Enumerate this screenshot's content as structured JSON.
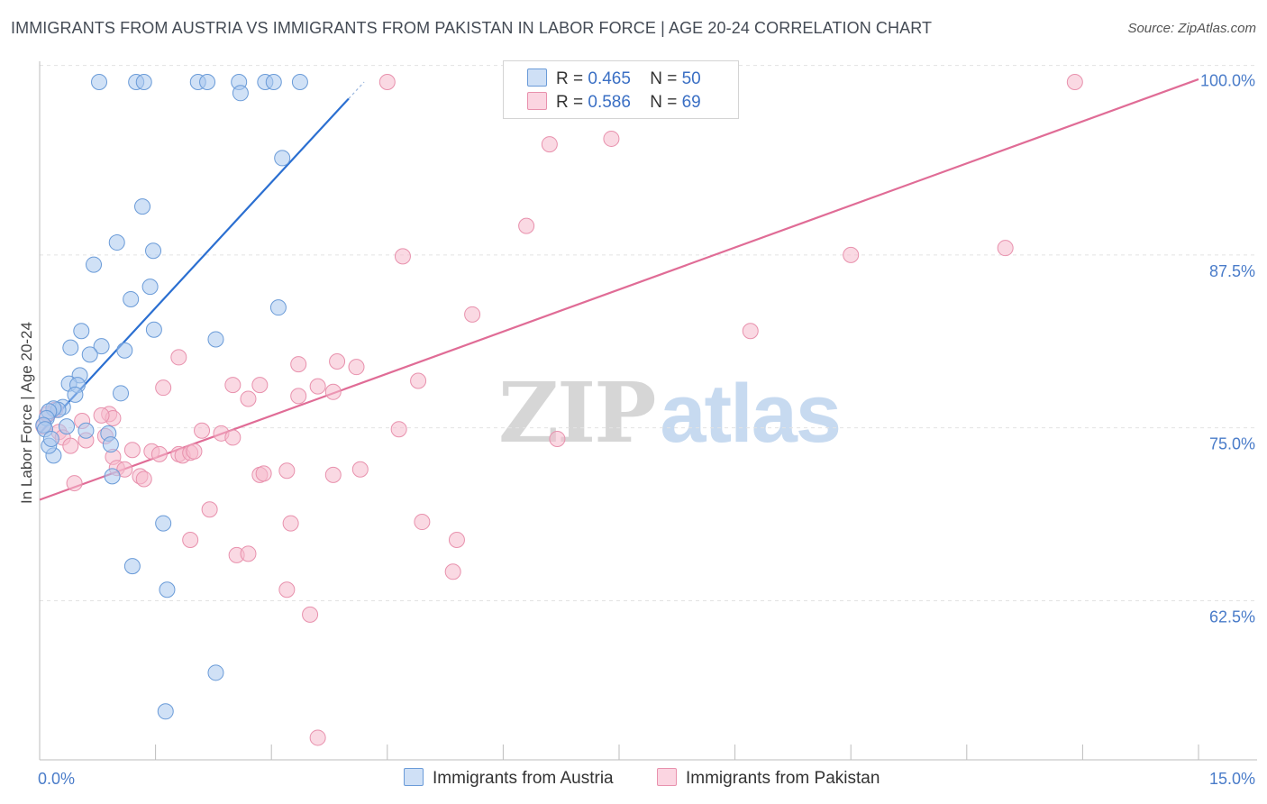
{
  "title": "IMMIGRANTS FROM AUSTRIA VS IMMIGRANTS FROM PAKISTAN IN LABOR FORCE | AGE 20-24 CORRELATION CHART",
  "source": "Source: ZipAtlas.com",
  "watermark": {
    "zip": "ZIP",
    "atlas": "atlas"
  },
  "legend": {
    "rows": [
      {
        "r_label": "R =",
        "r_value": "0.465",
        "n_label": "N =",
        "n_value": "50",
        "color": "#a9c8ee"
      },
      {
        "r_label": "R =",
        "r_value": "0.586",
        "n_label": "N =",
        "n_value": "69",
        "color": "#f6b9cc"
      }
    ]
  },
  "bottom_legend": [
    {
      "label": "Immigrants from Austria",
      "color": "#a9c8ee"
    },
    {
      "label": "Immigrants from Pakistan",
      "color": "#f6b9cc"
    }
  ],
  "colors": {
    "austria_fill": "#a9c8ee",
    "austria_stroke": "#6a9bd8",
    "austria_line": "#2b6fd1",
    "pakistan_fill": "#f6b9cc",
    "pakistan_stroke": "#e891ad",
    "pakistan_line": "#e06c96",
    "grid": "#e3e3e3",
    "axis_label": "#4a7cc9"
  },
  "chart_data": {
    "type": "scatter",
    "title": "IMMIGRANTS FROM AUSTRIA VS IMMIGRANTS FROM PAKISTAN IN LABOR FORCE | AGE 20-24 CORRELATION CHART",
    "xlabel": "",
    "ylabel": "In Labor Force | Age 20-24",
    "xlim": [
      0,
      15
    ],
    "ylim": [
      51,
      101.5
    ],
    "x_tick_labels": [
      "0.0%",
      "15.0%"
    ],
    "y_ticks": [
      62.5,
      75.0,
      87.5,
      100.0
    ],
    "y_tick_labels": [
      "62.5%",
      "75.0%",
      "87.5%",
      "100.0%"
    ],
    "grid": true,
    "legend_position": "top-center",
    "series": [
      {
        "name": "Immigrants from Austria",
        "color": "#a9c8ee",
        "trend": {
          "x": [
            0.0,
            4.0
          ],
          "y": [
            74.6,
            98.8
          ],
          "dashed_to": [
            4.2,
            100.0
          ]
        },
        "points": [
          [
            0.77,
            100.0
          ],
          [
            1.25,
            100.0
          ],
          [
            1.35,
            100.0
          ],
          [
            2.05,
            100.0
          ],
          [
            2.17,
            100.0
          ],
          [
            2.58,
            100.0
          ],
          [
            2.92,
            100.0
          ],
          [
            3.03,
            100.0
          ],
          [
            3.37,
            100.0
          ],
          [
            2.6,
            99.2
          ],
          [
            3.14,
            94.5
          ],
          [
            1.33,
            91.0
          ],
          [
            1.0,
            88.4
          ],
          [
            1.47,
            87.8
          ],
          [
            0.7,
            86.8
          ],
          [
            1.43,
            85.2
          ],
          [
            1.18,
            84.3
          ],
          [
            3.09,
            83.7
          ],
          [
            0.54,
            82.0
          ],
          [
            1.48,
            82.1
          ],
          [
            2.28,
            81.4
          ],
          [
            0.8,
            80.9
          ],
          [
            0.4,
            80.8
          ],
          [
            1.1,
            80.6
          ],
          [
            0.65,
            80.3
          ],
          [
            0.52,
            78.8
          ],
          [
            0.38,
            78.2
          ],
          [
            0.49,
            78.1
          ],
          [
            1.05,
            77.5
          ],
          [
            0.46,
            77.4
          ],
          [
            0.3,
            76.5
          ],
          [
            0.24,
            76.3
          ],
          [
            0.18,
            76.4
          ],
          [
            0.12,
            76.2
          ],
          [
            0.09,
            75.7
          ],
          [
            0.05,
            75.2
          ],
          [
            0.07,
            74.9
          ],
          [
            0.6,
            74.8
          ],
          [
            0.89,
            74.6
          ],
          [
            0.92,
            73.8
          ],
          [
            0.18,
            73.0
          ],
          [
            0.94,
            71.5
          ],
          [
            1.6,
            68.1
          ],
          [
            1.2,
            65.0
          ],
          [
            1.65,
            63.3
          ],
          [
            2.28,
            57.3
          ],
          [
            1.63,
            54.5
          ],
          [
            0.12,
            73.7
          ],
          [
            0.35,
            75.1
          ],
          [
            0.15,
            74.2
          ]
        ]
      },
      {
        "name": "Immigrants from Pakistan",
        "color": "#f6b9cc",
        "trend": {
          "x": [
            0.0,
            15.0
          ],
          "y": [
            69.8,
            100.2
          ]
        },
        "points": [
          [
            4.5,
            100.0
          ],
          [
            7.3,
            100.0
          ],
          [
            13.4,
            100.0
          ],
          [
            6.6,
            95.5
          ],
          [
            7.4,
            95.9
          ],
          [
            6.3,
            89.6
          ],
          [
            4.7,
            87.4
          ],
          [
            10.5,
            87.5
          ],
          [
            12.5,
            88.0
          ],
          [
            5.6,
            83.2
          ],
          [
            9.2,
            82.0
          ],
          [
            1.8,
            80.1
          ],
          [
            3.35,
            79.6
          ],
          [
            3.85,
            79.8
          ],
          [
            4.1,
            79.4
          ],
          [
            4.9,
            78.4
          ],
          [
            1.6,
            77.9
          ],
          [
            2.5,
            78.1
          ],
          [
            2.85,
            78.1
          ],
          [
            3.6,
            78.0
          ],
          [
            3.8,
            77.6
          ],
          [
            2.7,
            77.1
          ],
          [
            3.35,
            77.3
          ],
          [
            0.2,
            76.3
          ],
          [
            0.9,
            76.0
          ],
          [
            0.95,
            75.7
          ],
          [
            0.55,
            75.5
          ],
          [
            0.05,
            75.1
          ],
          [
            0.25,
            74.7
          ],
          [
            2.1,
            74.8
          ],
          [
            2.35,
            74.6
          ],
          [
            2.5,
            74.3
          ],
          [
            4.65,
            74.9
          ],
          [
            6.7,
            74.2
          ],
          [
            0.3,
            74.3
          ],
          [
            0.6,
            74.1
          ],
          [
            0.4,
            73.7
          ],
          [
            1.2,
            73.4
          ],
          [
            1.45,
            73.3
          ],
          [
            1.55,
            73.1
          ],
          [
            1.8,
            73.1
          ],
          [
            1.85,
            73.0
          ],
          [
            1.95,
            73.2
          ],
          [
            2.0,
            73.3
          ],
          [
            0.95,
            72.9
          ],
          [
            1.0,
            72.1
          ],
          [
            1.1,
            72.0
          ],
          [
            1.3,
            71.5
          ],
          [
            1.35,
            71.3
          ],
          [
            2.85,
            71.6
          ],
          [
            2.9,
            71.7
          ],
          [
            3.2,
            71.9
          ],
          [
            3.8,
            71.6
          ],
          [
            4.15,
            72.0
          ],
          [
            0.45,
            71.0
          ],
          [
            2.2,
            69.1
          ],
          [
            3.25,
            68.1
          ],
          [
            4.95,
            68.2
          ],
          [
            5.4,
            66.9
          ],
          [
            1.95,
            66.9
          ],
          [
            2.55,
            65.8
          ],
          [
            2.7,
            65.9
          ],
          [
            3.2,
            63.3
          ],
          [
            5.35,
            64.6
          ],
          [
            3.5,
            61.5
          ],
          [
            3.6,
            52.6
          ],
          [
            0.85,
            74.4
          ],
          [
            0.1,
            76.0
          ],
          [
            0.8,
            75.9
          ]
        ]
      }
    ]
  }
}
